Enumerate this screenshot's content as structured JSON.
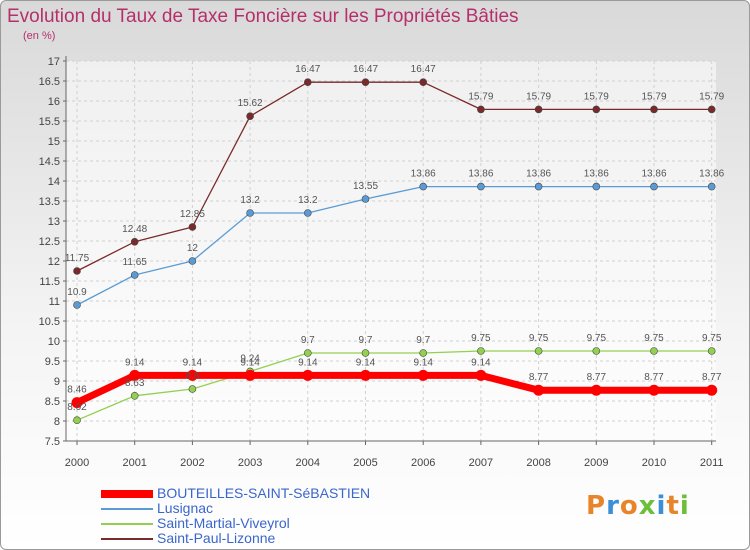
{
  "title": "Evolution du Taux de Taxe Foncière sur les Propriétés Bâties",
  "unit": "(en %)",
  "logo": {
    "text": "Proxiti",
    "colors": [
      "#e8842a",
      "#3b8fd6",
      "#e8842a",
      "#6cbf3a",
      "#3b8fd6",
      "#e8842a",
      "#6cbf3a"
    ]
  },
  "chart_data": {
    "type": "line",
    "x": [
      "2000",
      "2001",
      "2002",
      "2003",
      "2004",
      "2005",
      "2006",
      "2007",
      "2008",
      "2009",
      "2010",
      "2011"
    ],
    "ylim": [
      7.5,
      17
    ],
    "yticks": [
      "7.5",
      "8",
      "8.5",
      "9",
      "9.5",
      "10",
      "10.5",
      "11",
      "11.5",
      "12",
      "12.5",
      "13",
      "13.5",
      "14",
      "14.5",
      "15",
      "15.5",
      "16",
      "16.5",
      "17"
    ],
    "grid": true,
    "legend_position": "bottom-left",
    "series": [
      {
        "name": "BOUTEILLES-SAINT-SéBASTIEN",
        "color": "#ff0000",
        "width": 7,
        "values": [
          8.46,
          9.14,
          9.14,
          9.14,
          9.14,
          9.14,
          9.14,
          9.14,
          8.77,
          8.77,
          8.77,
          8.77
        ],
        "labels": [
          "8.46",
          "9.14",
          "9.14",
          "9.14",
          "9.14",
          "9.14",
          "9.14",
          "9.14",
          "8.77",
          "8.77",
          "8.77",
          "8.77"
        ]
      },
      {
        "name": "Lusignac",
        "color": "#5b9bd5",
        "width": 1.3,
        "values": [
          10.9,
          11.65,
          12,
          13.2,
          13.2,
          13.55,
          13.86,
          13.86,
          13.86,
          13.86,
          13.86,
          13.86
        ],
        "labels": [
          "10.9",
          "11.65",
          "12",
          "13.2",
          "13.2",
          "13.55",
          "13.86",
          "13.86",
          "13.86",
          "13.86",
          "13.86",
          "13.86"
        ]
      },
      {
        "name": "Saint-Martial-Viveyrol",
        "color": "#92d050",
        "width": 1.3,
        "values": [
          8.02,
          8.63,
          8.8,
          9.24,
          9.7,
          9.7,
          9.7,
          9.75,
          9.75,
          9.75,
          9.75,
          9.75
        ],
        "labels": [
          "8.02",
          "8.63",
          "8.8",
          "9.24",
          "9.7",
          "9.7",
          "9.7",
          "9.75",
          "9.75",
          "9.75",
          "9.75",
          "9.75"
        ]
      },
      {
        "name": "Saint-Paul-Lizonne",
        "color": "#7a2a2a",
        "width": 1.3,
        "values": [
          11.75,
          12.48,
          12.85,
          15.62,
          16.47,
          16.47,
          16.47,
          15.79,
          15.79,
          15.79,
          15.79,
          15.79
        ],
        "labels": [
          "11.75",
          "12.48",
          "12.85",
          "15.62",
          "16.47",
          "16.47",
          "16.47",
          "15.79",
          "15.79",
          "15.79",
          "15.79",
          "15.79"
        ]
      }
    ]
  }
}
